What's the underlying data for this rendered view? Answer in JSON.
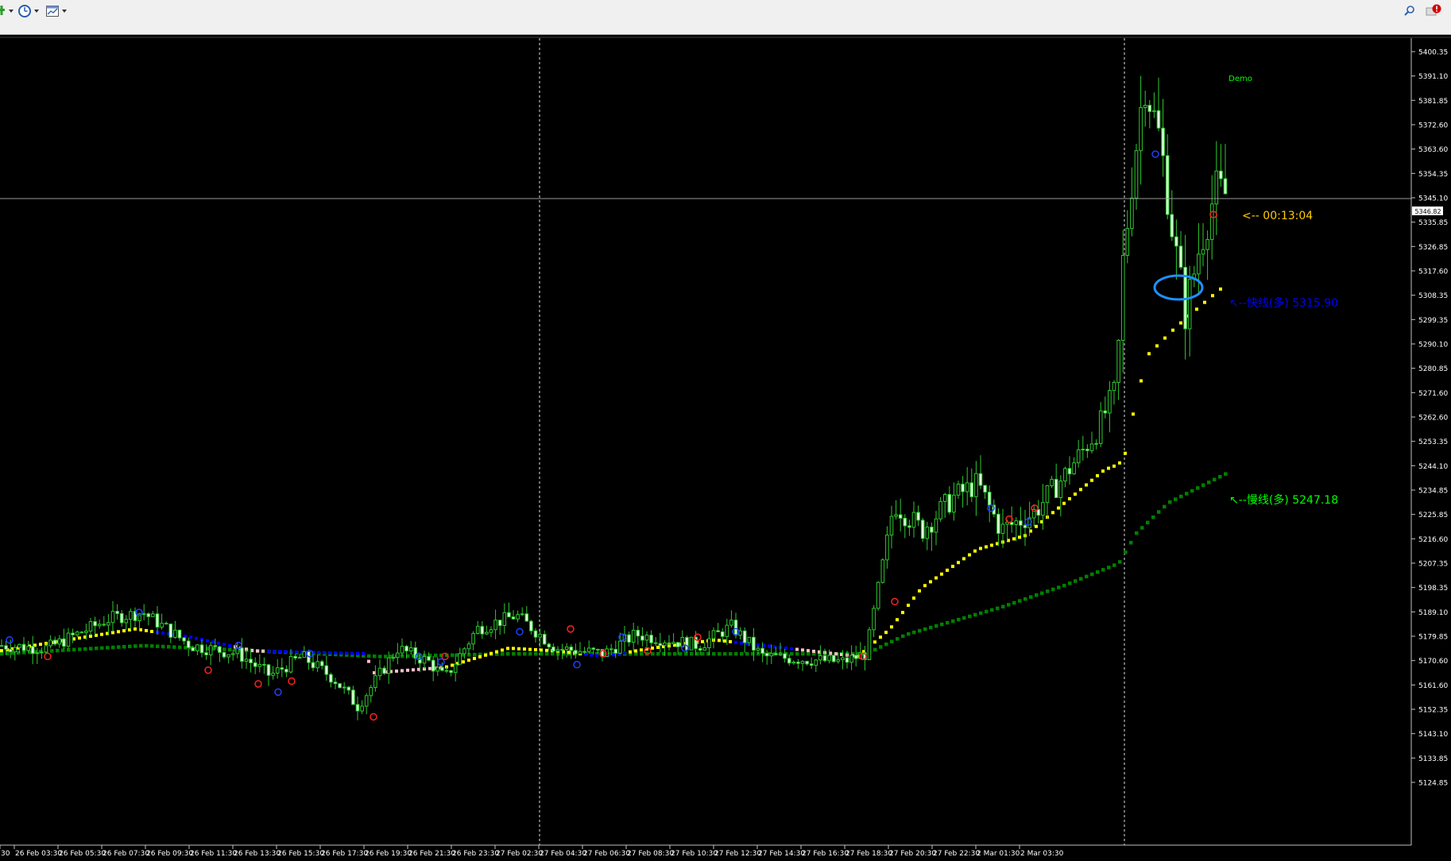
{
  "toolbar": {
    "buttons": [
      {
        "name": "new-order-icon"
      },
      {
        "name": "clock-icon"
      },
      {
        "name": "chart-template-icon"
      }
    ],
    "right_icons": [
      "search-icon",
      "alert-icon"
    ]
  },
  "chart": {
    "watermark": "Demo",
    "current_price": "5346.82",
    "timer_label": "<-- 00:13:04",
    "fast_label": "↖--快线(多)  5315.90",
    "slow_label": "↖--慢线(多)  5247.18",
    "colors": {
      "background": "#000000",
      "candle": "#2ec82e",
      "fast_bull": "#ffff00",
      "fast_bear": "#0000ff",
      "fast_neutral": "#ffc0cb",
      "slow": "#008000",
      "slow_label": "#00ff00",
      "fast_label": "#0000ff",
      "timer_label": "#ffcc00",
      "axis_text": "#ffffff",
      "ellipse": "#1e90ff"
    },
    "y_ticks": [
      "5400.35",
      "5391.10",
      "5381.85",
      "5372.60",
      "5363.60",
      "5354.35",
      "5345.10",
      "5335.85",
      "5326.85",
      "5317.60",
      "5308.35",
      "5299.35",
      "5290.10",
      "5280.85",
      "5271.60",
      "5262.60",
      "5253.35",
      "5244.10",
      "5234.85",
      "5225.85",
      "5216.60",
      "5207.35",
      "5198.35",
      "5189.10",
      "5179.85",
      "5170.60",
      "5161.60",
      "5152.35",
      "5143.10",
      "5133.85",
      "5124.85"
    ],
    "x_ticks": [
      "30",
      "26 Feb 03:30",
      "26 Feb 05:30",
      "26 Feb 07:30",
      "26 Feb 09:30",
      "26 Feb 11:30",
      "26 Feb 13:30",
      "26 Feb 15:30",
      "26 Feb 17:30",
      "26 Feb 19:30",
      "26 Feb 21:30",
      "26 Feb 23:30",
      "27 Feb 02:30",
      "27 Feb 04:30",
      "27 Feb 06:30",
      "27 Feb 08:30",
      "27 Feb 10:30",
      "27 Feb 12:30",
      "27 Feb 14:30",
      "27 Feb 16:30",
      "27 Feb 18:30",
      "27 Feb 20:30",
      "27 Feb 22:30",
      "2 Mar 01:30",
      "2 Mar 03:30"
    ]
  }
}
